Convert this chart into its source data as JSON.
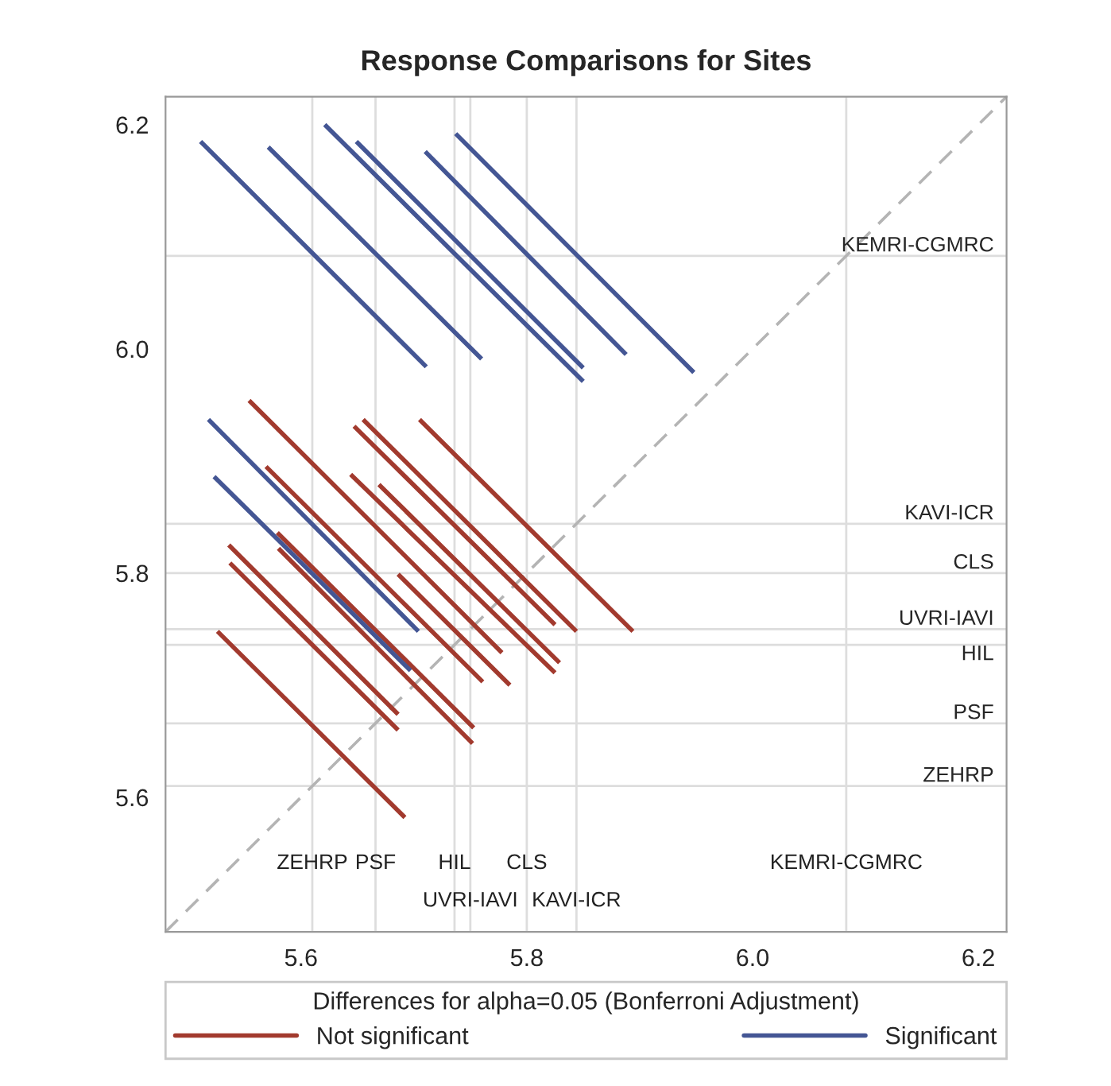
{
  "chart_data": {
    "type": "line",
    "title": "Response Comparisons for Sites",
    "legend_title": "Differences for alpha=0.05 (Bonferroni Adjustment)",
    "xlim": [
      5.48,
      6.225
    ],
    "ylim": [
      5.48,
      6.225
    ],
    "xticks": [
      5.6,
      5.8,
      {
        "value": 6.0,
        "label": "6.0"
      },
      6.2
    ],
    "yticks": [
      5.6,
      5.8,
      {
        "value": 6.0,
        "label": "6.0"
      },
      6.2
    ],
    "grid": false,
    "legend": "bottom",
    "line_style": "solid",
    "marker": "none",
    "series": [
      {
        "name": "Not significant",
        "color": "#a23a2e",
        "x": [
          5.526,
          5.692,
          null,
          5.537,
          5.686,
          null,
          5.536,
          5.686,
          null,
          5.58,
          5.752,
          null,
          5.579,
          5.753,
          null,
          5.569,
          5.761,
          null,
          5.554,
          5.778,
          null,
          5.686,
          5.785,
          null,
          5.644,
          5.825,
          null,
          5.647,
          5.825,
          null,
          5.669,
          5.829,
          null,
          5.655,
          5.844,
          null,
          5.705,
          5.894
        ],
        "values": [
          5.748,
          5.582,
          null,
          5.809,
          5.66,
          null,
          5.825,
          5.674,
          null,
          5.822,
          5.648,
          null,
          5.836,
          5.662,
          null,
          5.895,
          5.703,
          null,
          5.954,
          5.729,
          null,
          5.799,
          5.7,
          null,
          5.888,
          5.711,
          null,
          5.931,
          5.754,
          null,
          5.879,
          5.72,
          null,
          5.937,
          5.748,
          null,
          5.937,
          5.748
        ]
      },
      {
        "name": "Significant",
        "color": "#445694",
        "x": [
          5.511,
          5.711,
          null,
          5.571,
          5.76,
          null,
          5.621,
          5.85,
          null,
          5.649,
          5.85,
          null,
          5.71,
          5.888,
          null,
          5.737,
          5.948,
          null,
          5.518,
          5.704,
          null,
          5.523,
          5.697
        ],
        "values": [
          6.185,
          5.984,
          null,
          6.18,
          5.991,
          null,
          6.2,
          5.971,
          null,
          6.185,
          5.983,
          null,
          6.176,
          5.995,
          null,
          6.192,
          5.979,
          null,
          5.937,
          5.748,
          null,
          5.886,
          5.713
        ]
      },
      {
        "color": "#b4b4b4",
        "line_style": "dashed",
        "x": [
          5.48,
          6.225
        ],
        "values": [
          5.48,
          6.225
        ]
      }
    ],
    "ref_lines": [
      {
        "axis": "x",
        "value": 5.61,
        "label": "ZEHRP"
      },
      {
        "axis": "x",
        "value": 5.666,
        "label": "PSF"
      },
      {
        "axis": "x",
        "value": 5.736,
        "label": "HIL"
      },
      {
        "axis": "x",
        "value": 5.75,
        "label": "UVRI-IAVI"
      },
      {
        "axis": "x",
        "value": 5.8,
        "label": "CLS"
      },
      {
        "axis": "x",
        "value": 5.844,
        "label": "KAVI-ICR"
      },
      {
        "axis": "x",
        "value": 6.083,
        "label": "KEMRI-CGMRC"
      },
      {
        "axis": "y",
        "value": 6.083,
        "label": "KEMRI-CGMRC"
      },
      {
        "axis": "y",
        "value": 5.844,
        "label": "KAVI-ICR"
      },
      {
        "axis": "y",
        "value": 5.8,
        "label": "CLS"
      },
      {
        "axis": "y",
        "value": 5.75,
        "label": "UVRI-IAVI"
      },
      {
        "axis": "y",
        "value": 5.736,
        "label": "HIL"
      },
      {
        "axis": "y",
        "value": 5.666,
        "label": "PSF"
      },
      {
        "axis": "y",
        "value": 5.61,
        "label": "ZEHRP"
      }
    ]
  }
}
